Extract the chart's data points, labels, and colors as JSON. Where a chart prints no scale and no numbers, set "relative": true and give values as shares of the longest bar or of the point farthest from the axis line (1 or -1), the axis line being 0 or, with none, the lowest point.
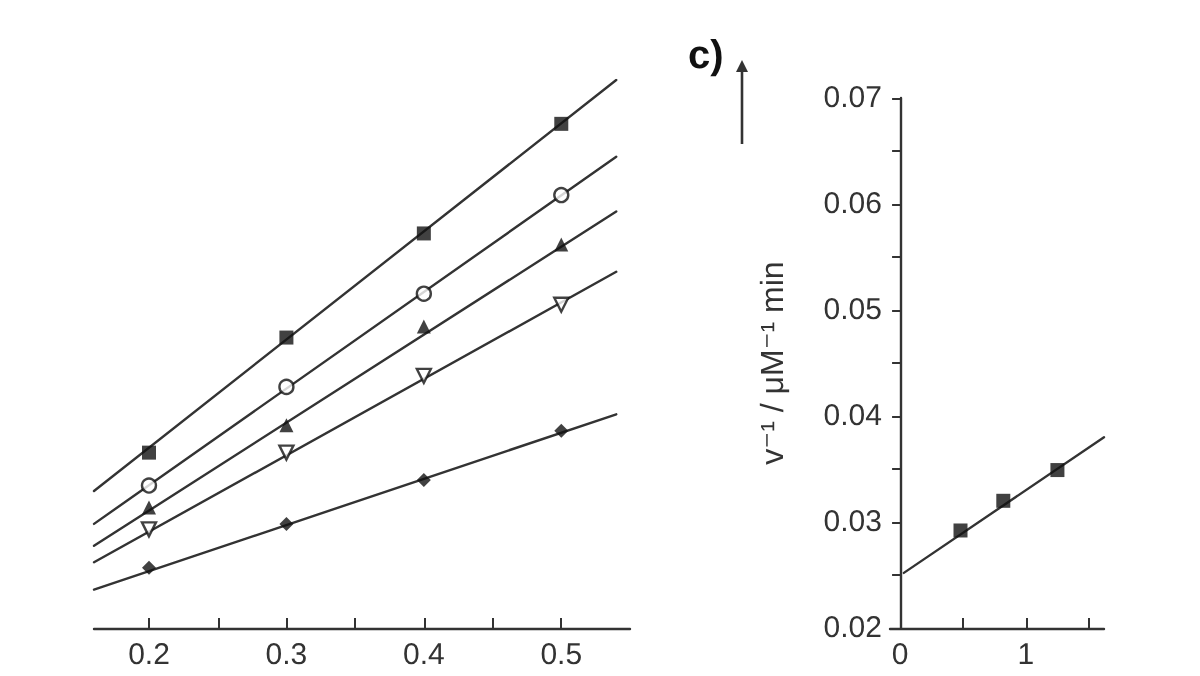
{
  "chart_data": [
    {
      "type": "scatter",
      "relative": true,
      "x": [
        0.2,
        0.3,
        0.4,
        0.5
      ],
      "xlim": [
        0.16,
        0.55
      ],
      "xticks": [
        0.2,
        {
          "value": 0.25,
          "label": null
        },
        0.3,
        {
          "value": 0.35,
          "label": null
        },
        0.4,
        {
          "value": 0.45,
          "label": null
        },
        0.5
      ],
      "tick_labels": "x",
      "grid": false,
      "series": [
        {
          "color": "#111111",
          "marker": "square",
          "values": [
            0.32,
            0.53,
            0.72,
            0.92
          ]
        },
        {
          "color": "#111111",
          "marker": "circle",
          "values": [
            0.26,
            0.44,
            0.61,
            0.79
          ]
        },
        {
          "color": "#111111",
          "marker": "triangle",
          "values": [
            0.22,
            0.37,
            0.55,
            0.7
          ]
        },
        {
          "color": "#111111",
          "marker": "triangle-down",
          "values": [
            0.18,
            0.32,
            0.46,
            0.59
          ]
        },
        {
          "color": "#111111",
          "marker": "diamond",
          "values": [
            0.11,
            0.19,
            0.27,
            0.36
          ]
        },
        {
          "type": "line",
          "color": "#333333",
          "marker": "none",
          "x": [
            0.16,
            0.54
          ],
          "values": [
            0.25,
            1
          ]
        },
        {
          "type": "line",
          "color": "#333333",
          "marker": "none",
          "x": [
            0.16,
            0.54
          ],
          "values": [
            0.19,
            0.86
          ]
        },
        {
          "type": "line",
          "color": "#333333",
          "marker": "none",
          "x": [
            0.16,
            0.54
          ],
          "values": [
            0.15,
            0.76
          ]
        },
        {
          "type": "line",
          "color": "#333333",
          "marker": "none",
          "x": [
            0.16,
            0.54
          ],
          "values": [
            0.12,
            0.65
          ]
        },
        {
          "type": "line",
          "color": "#333333",
          "marker": "none",
          "x": [
            0.16,
            0.54
          ],
          "values": [
            0.07,
            0.39
          ]
        }
      ]
    },
    {
      "type": "scatter",
      "ylabel": "v⁻¹ / μM⁻¹ min",
      "annotations": [
        "c)"
      ],
      "x": [
        0.48,
        0.82,
        1.25
      ],
      "xlim": [
        -0.08,
        1.62
      ],
      "xticks": [
        0,
        {
          "value": 0.5,
          "label": null
        },
        1,
        {
          "value": 1.5,
          "label": null
        }
      ],
      "ylim": [
        0.02,
        0.07
      ],
      "yticks": [
        0.02,
        {
          "value": 0.025,
          "label": null
        },
        0.03,
        {
          "value": 0.035,
          "label": null
        },
        0.04,
        {
          "value": 0.045,
          "label": null
        },
        0.05,
        {
          "value": 0.055,
          "label": null
        },
        0.06,
        {
          "value": 0.065,
          "label": null
        },
        0.07
      ],
      "grid": false,
      "series": [
        {
          "color": "#111111",
          "marker": "square",
          "values": [
            0.0292,
            0.032,
            0.0349
          ]
        },
        {
          "type": "line",
          "color": "#333333",
          "marker": "none",
          "x": [
            0.03,
            1.62
          ],
          "values": [
            0.0252,
            0.038
          ]
        }
      ]
    }
  ]
}
